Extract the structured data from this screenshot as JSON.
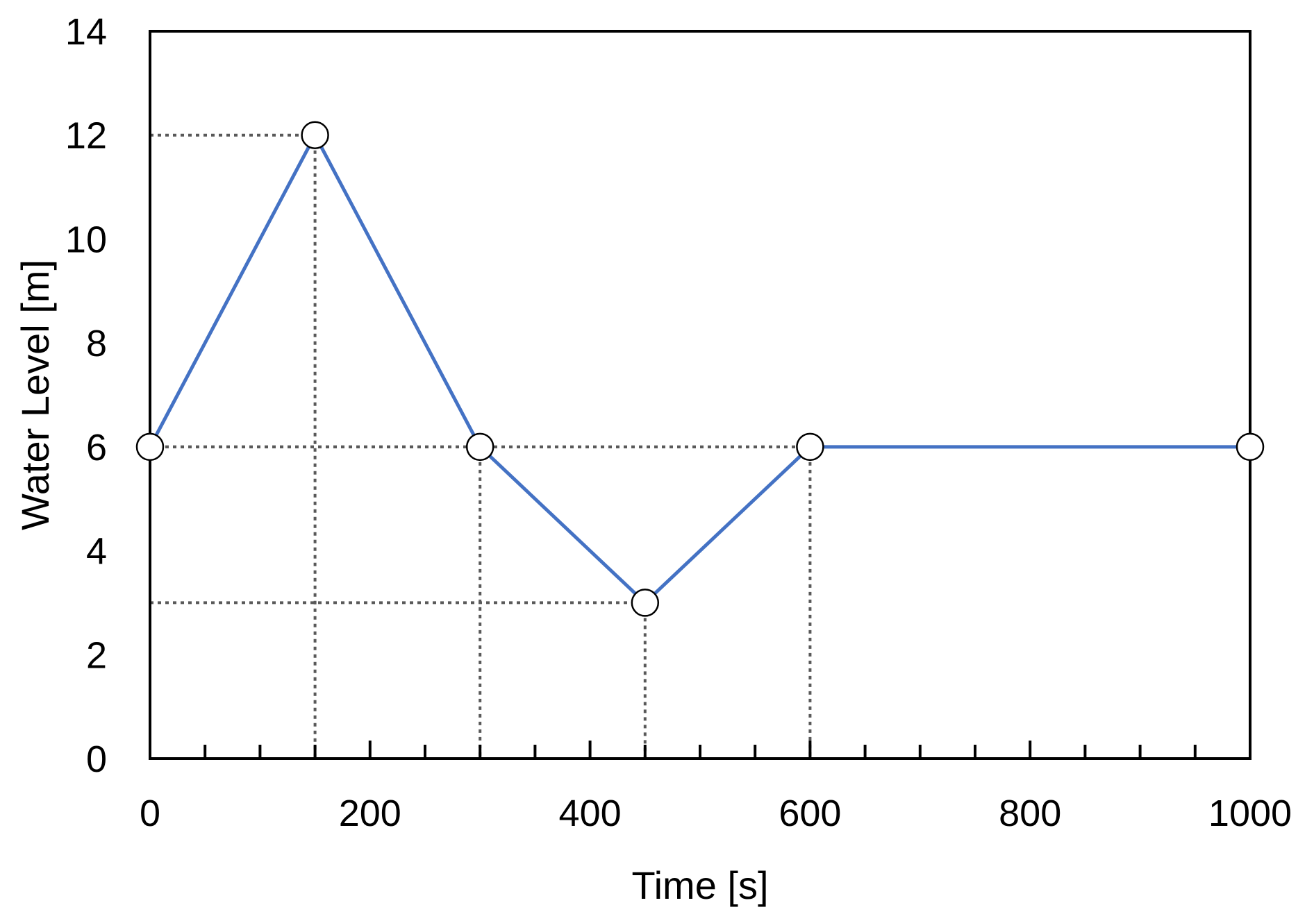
{
  "chart_data": {
    "type": "line",
    "title": "",
    "xlabel": "Time [s]",
    "ylabel": "Water Level [m]",
    "xlim": [
      0,
      1000
    ],
    "ylim": [
      0,
      14
    ],
    "x_ticks": [
      0,
      200,
      400,
      600,
      800,
      1000
    ],
    "x_minor_step": 50,
    "y_ticks": [
      0,
      2,
      4,
      6,
      8,
      10,
      12,
      14
    ],
    "grid": false,
    "legend": "none",
    "series": [
      {
        "x": [
          0,
          150,
          300,
          450,
          600,
          1000
        ],
        "y": [
          6,
          12,
          6,
          3,
          6,
          6
        ],
        "color": "#4472C4",
        "marker": "open-circle"
      }
    ],
    "guide_color": "#595959"
  }
}
